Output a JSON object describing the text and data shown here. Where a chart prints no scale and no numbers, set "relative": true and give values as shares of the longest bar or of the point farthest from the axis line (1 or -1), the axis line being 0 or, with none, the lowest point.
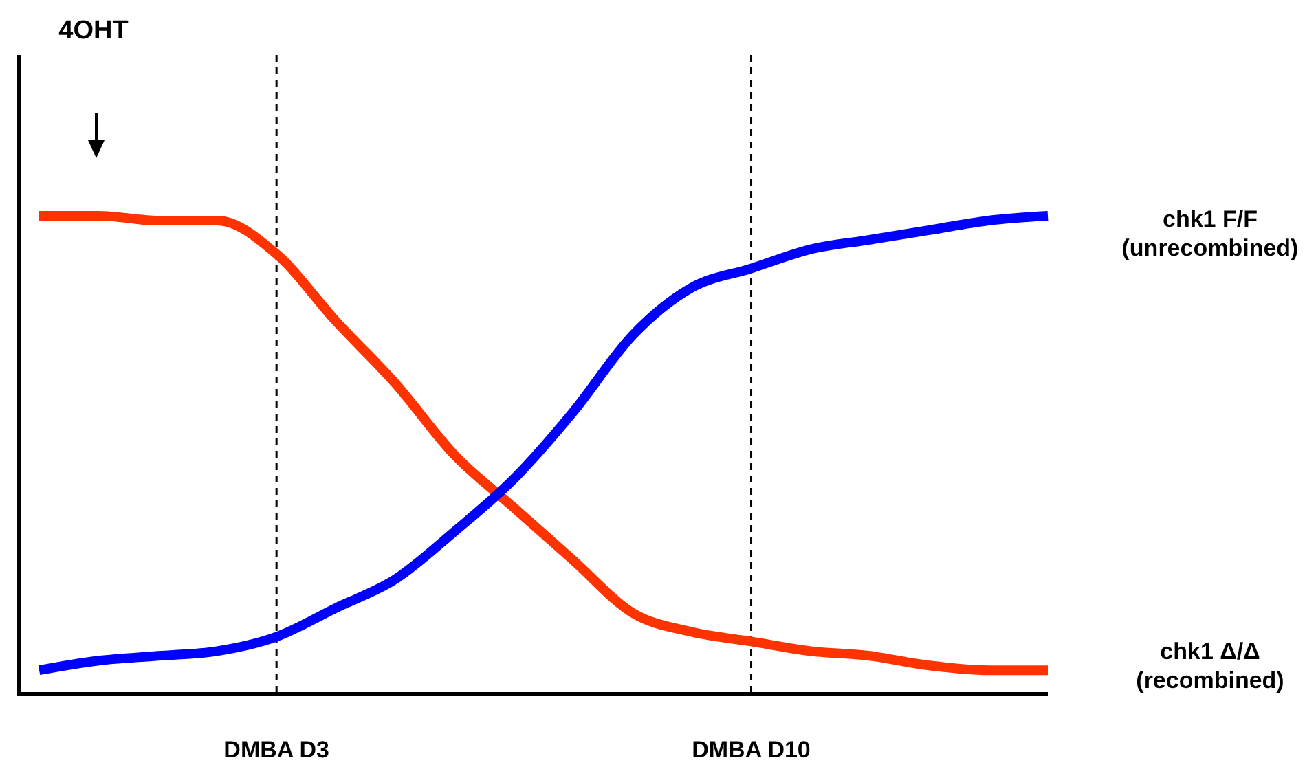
{
  "chart_data": {
    "type": "line",
    "relative": true,
    "tick_labels": "x",
    "categories": [
      null,
      null,
      null,
      null,
      "DMBA D3",
      null,
      null,
      null,
      null,
      null,
      null,
      null,
      "DMBA D10",
      null,
      null,
      null,
      null,
      null
    ],
    "ref_lines": [
      {
        "axis": "x",
        "value": "DMBA D3",
        "line_style": "dashed",
        "color": "#000000"
      },
      {
        "axis": "x",
        "value": "DMBA D10",
        "line_style": "dashed",
        "color": "#000000"
      }
    ],
    "annotations": [
      "4OHT"
    ],
    "marker": "none",
    "line_style": "solid",
    "legend": false,
    "grid": false,
    "series": [
      {
        "name": "chk1 Δ/Δ (recombined)",
        "color": "#ff3300",
        "values": [
          1.0,
          1.0,
          0.99,
          0.99,
          0.92,
          0.78,
          0.65,
          0.5,
          0.39,
          0.28,
          0.17,
          0.13,
          0.11,
          0.09,
          0.08,
          0.06,
          0.05,
          0.05
        ]
      },
      {
        "name": "chk1 F/F (unrecombined)",
        "color": "#0000ff",
        "values": [
          0.05,
          0.07,
          0.08,
          0.09,
          0.12,
          0.18,
          0.24,
          0.34,
          0.45,
          0.59,
          0.75,
          0.85,
          0.89,
          0.93,
          0.95,
          0.97,
          0.99,
          1.0
        ]
      }
    ]
  }
}
